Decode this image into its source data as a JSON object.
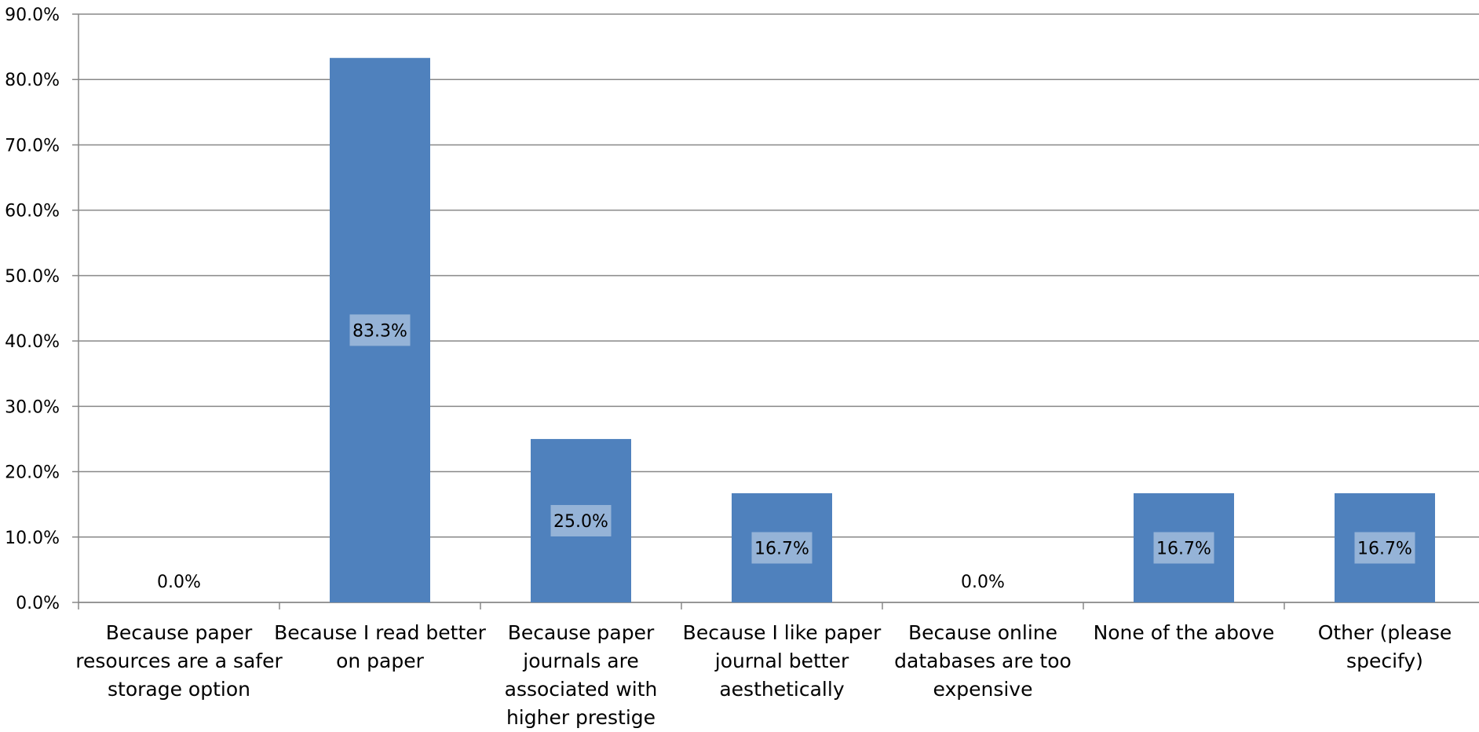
{
  "chart_data": {
    "type": "bar",
    "title": "",
    "xlabel": "",
    "ylabel": "",
    "ylim": [
      0,
      90
    ],
    "y_ticks": [
      "0.0%",
      "10.0%",
      "20.0%",
      "30.0%",
      "40.0%",
      "50.0%",
      "60.0%",
      "70.0%",
      "80.0%",
      "90.0%"
    ],
    "grid": true,
    "categories": [
      [
        "Because paper",
        "resources are a safer",
        "storage option"
      ],
      [
        "Because I read better",
        "on paper"
      ],
      [
        "Because paper",
        "journals are",
        "associated with",
        "higher prestige"
      ],
      [
        "Because I like paper",
        "journal better",
        "aesthetically"
      ],
      [
        "Because online",
        "databases are too",
        "expensive"
      ],
      [
        "None of the above"
      ],
      [
        "Other (please",
        "specify)"
      ]
    ],
    "values": [
      0.0,
      83.3,
      25.0,
      16.7,
      0.0,
      16.7,
      16.7
    ],
    "data_labels": [
      "0.0%",
      "83.3%",
      "25.0%",
      "16.7%",
      "0.0%",
      "16.7%",
      "16.7%"
    ],
    "colors": {
      "bar": "#4f81bd",
      "label_box": "#95b3d7",
      "grid": "#888888",
      "axis": "#888888"
    }
  }
}
